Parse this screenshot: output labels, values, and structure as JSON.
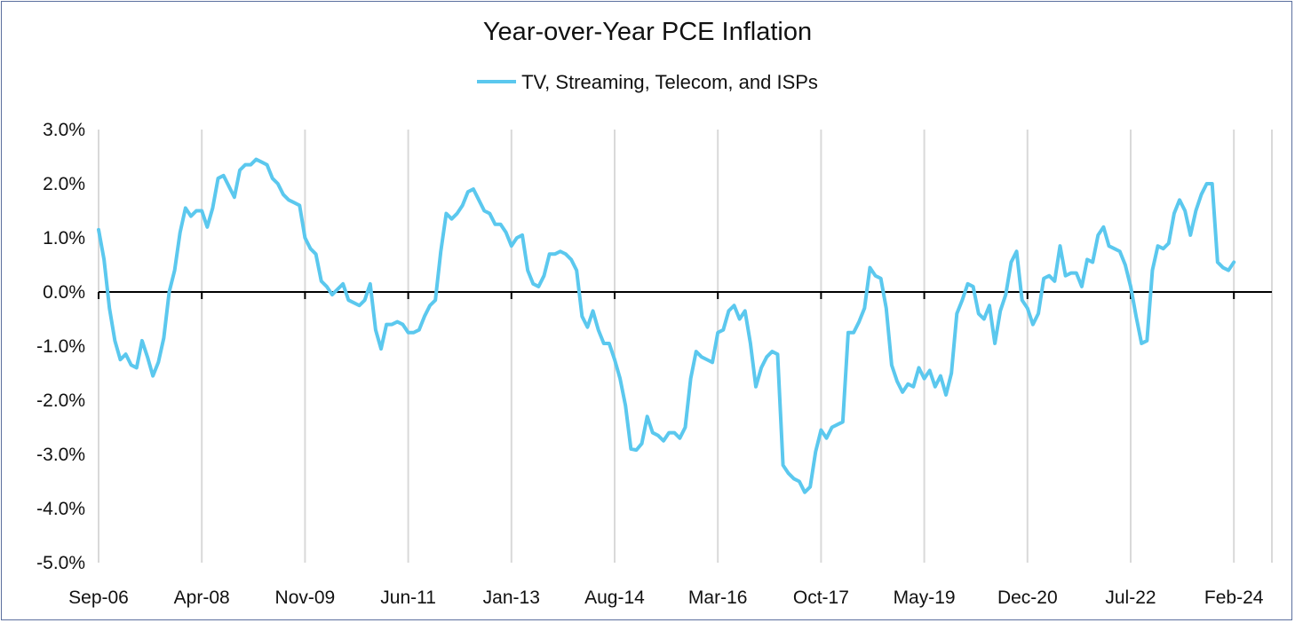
{
  "colors": {
    "series": "#5bc8ee",
    "grid": "#d9d9d9",
    "zero_line": "#000000",
    "frame": "#5b6f9e"
  },
  "chart_data": {
    "type": "line",
    "title": "Year-over-Year PCE Inflation",
    "xlabel": "",
    "ylabel": "",
    "legend_position": "top-center",
    "grid": {
      "vertical": true,
      "horizontal": false
    },
    "ylim": [
      -5.0,
      3.0
    ],
    "y_ticks": [
      3.0,
      2.0,
      1.0,
      0.0,
      -1.0,
      -2.0,
      -3.0,
      -4.0,
      -5.0
    ],
    "y_tick_labels": [
      "3.0%",
      "2.0%",
      "1.0%",
      "0.0%",
      "-1.0%",
      "-2.0%",
      "-3.0%",
      "-4.0%",
      "-5.0%"
    ],
    "x_start": "2006-09",
    "x_end": "2024-09",
    "x_ticks": [
      "2006-09",
      "2008-04",
      "2009-11",
      "2011-06",
      "2013-01",
      "2014-08",
      "2016-03",
      "2017-10",
      "2019-05",
      "2020-12",
      "2022-07",
      "2024-02"
    ],
    "x_tick_labels": [
      "Sep-06",
      "Apr-08",
      "Nov-09",
      "Jun-11",
      "Jan-13",
      "Aug-14",
      "Mar-16",
      "Oct-17",
      "May-19",
      "Dec-20",
      "Jul-22",
      "Feb-24"
    ],
    "series": [
      {
        "name": "TV, Streaming, Telecom, and ISPs",
        "start": "2006-09",
        "values": [
          1.15,
          0.6,
          -0.3,
          -0.9,
          -1.25,
          -1.15,
          -1.35,
          -1.4,
          -0.9,
          -1.2,
          -1.55,
          -1.3,
          -0.85,
          0.0,
          0.4,
          1.1,
          1.55,
          1.4,
          1.5,
          1.5,
          1.2,
          1.55,
          2.1,
          2.15,
          1.95,
          1.75,
          2.25,
          2.35,
          2.35,
          2.45,
          2.4,
          2.35,
          2.1,
          2.0,
          1.8,
          1.7,
          1.65,
          1.6,
          1.0,
          0.8,
          0.7,
          0.2,
          0.1,
          -0.05,
          0.05,
          0.15,
          -0.15,
          -0.2,
          -0.25,
          -0.15,
          0.15,
          -0.7,
          -1.05,
          -0.6,
          -0.6,
          -0.55,
          -0.6,
          -0.75,
          -0.75,
          -0.7,
          -0.45,
          -0.25,
          -0.15,
          0.75,
          1.45,
          1.35,
          1.45,
          1.6,
          1.85,
          1.9,
          1.7,
          1.5,
          1.45,
          1.25,
          1.25,
          1.1,
          0.85,
          1.0,
          1.05,
          0.4,
          0.15,
          0.1,
          0.3,
          0.7,
          0.7,
          0.75,
          0.7,
          0.6,
          0.4,
          -0.45,
          -0.65,
          -0.35,
          -0.7,
          -0.95,
          -0.95,
          -1.25,
          -1.6,
          -2.1,
          -2.9,
          -2.92,
          -2.8,
          -2.3,
          -2.6,
          -2.65,
          -2.75,
          -2.6,
          -2.6,
          -2.7,
          -2.5,
          -1.6,
          -1.1,
          -1.2,
          -1.25,
          -1.3,
          -0.75,
          -0.7,
          -0.35,
          -0.25,
          -0.5,
          -0.35,
          -0.95,
          -1.75,
          -1.4,
          -1.2,
          -1.1,
          -1.15,
          -3.2,
          -3.35,
          -3.45,
          -3.5,
          -3.7,
          -3.6,
          -2.95,
          -2.55,
          -2.7,
          -2.5,
          -2.45,
          -2.4,
          -0.75,
          -0.75,
          -0.55,
          -0.3,
          0.45,
          0.3,
          0.25,
          -0.3,
          -1.35,
          -1.65,
          -1.85,
          -1.7,
          -1.75,
          -1.4,
          -1.6,
          -1.45,
          -1.75,
          -1.55,
          -1.9,
          -1.5,
          -0.4,
          -0.15,
          0.15,
          0.1,
          -0.4,
          -0.5,
          -0.25,
          -0.95,
          -0.35,
          -0.05,
          0.55,
          0.75,
          -0.15,
          -0.3,
          -0.6,
          -0.4,
          0.25,
          0.3,
          0.2,
          0.85,
          0.3,
          0.35,
          0.35,
          0.1,
          0.6,
          0.55,
          1.05,
          1.2,
          0.85,
          0.8,
          0.75,
          0.5,
          0.1,
          -0.45,
          -0.95,
          -0.9,
          0.4,
          0.85,
          0.8,
          0.9,
          1.45,
          1.7,
          1.5,
          1.05,
          1.5,
          1.8,
          2.0,
          2.0,
          0.55,
          0.45,
          0.4,
          0.55
        ]
      }
    ]
  }
}
